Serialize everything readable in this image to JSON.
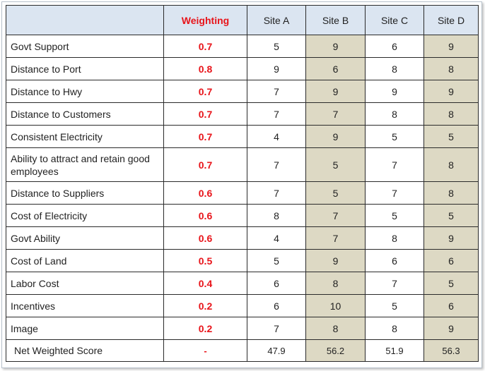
{
  "table": {
    "headers": [
      "",
      "Weighting",
      "Site A",
      "Site B",
      "Site C",
      "Site D"
    ],
    "rows": [
      {
        "factor": "Govt Support",
        "weight": "0.7",
        "a": "5",
        "b": "9",
        "c": "6",
        "d": "9"
      },
      {
        "factor": "Distance to Port",
        "weight": "0.8",
        "a": "9",
        "b": "6",
        "c": "8",
        "d": "8"
      },
      {
        "factor": "Distance to Hwy",
        "weight": "0.7",
        "a": "7",
        "b": "9",
        "c": "9",
        "d": "9"
      },
      {
        "factor": "Distance to Customers",
        "weight": "0.7",
        "a": "7",
        "b": "7",
        "c": "8",
        "d": "8"
      },
      {
        "factor": "Consistent Electricity",
        "weight": "0.7",
        "a": "4",
        "b": "9",
        "c": "5",
        "d": "5"
      },
      {
        "factor": "Ability to attract and retain good employees",
        "weight": "0.7",
        "a": "7",
        "b": "5",
        "c": "7",
        "d": "8"
      },
      {
        "factor": "Distance to Suppliers",
        "weight": "0.6",
        "a": "7",
        "b": "5",
        "c": "7",
        "d": "8"
      },
      {
        "factor": "Cost of Electricity",
        "weight": "0.6",
        "a": "8",
        "b": "7",
        "c": "5",
        "d": "5"
      },
      {
        "factor": "Govt Ability",
        "weight": "0.6",
        "a": "4",
        "b": "7",
        "c": "8",
        "d": "9"
      },
      {
        "factor": "Cost of Land",
        "weight": "0.5",
        "a": "5",
        "b": "9",
        "c": "6",
        "d": "6"
      },
      {
        "factor": "Labor Cost",
        "weight": "0.4",
        "a": "6",
        "b": "8",
        "c": "7",
        "d": "5"
      },
      {
        "factor": "Incentives",
        "weight": "0.2",
        "a": "6",
        "b": "10",
        "c": "5",
        "d": "6"
      },
      {
        "factor": "Image",
        "weight": "0.2",
        "a": "7",
        "b": "8",
        "c": "8",
        "d": "9"
      }
    ],
    "total": {
      "factor": "Net Weighted Score",
      "weight": "-",
      "a": "47.9",
      "b": "56.2",
      "c": "51.9",
      "d": "56.3"
    }
  },
  "colors": {
    "header_bg": "#dbe5f1",
    "weight_text": "#e8141a",
    "shade_bg": "#ddd9c4"
  }
}
